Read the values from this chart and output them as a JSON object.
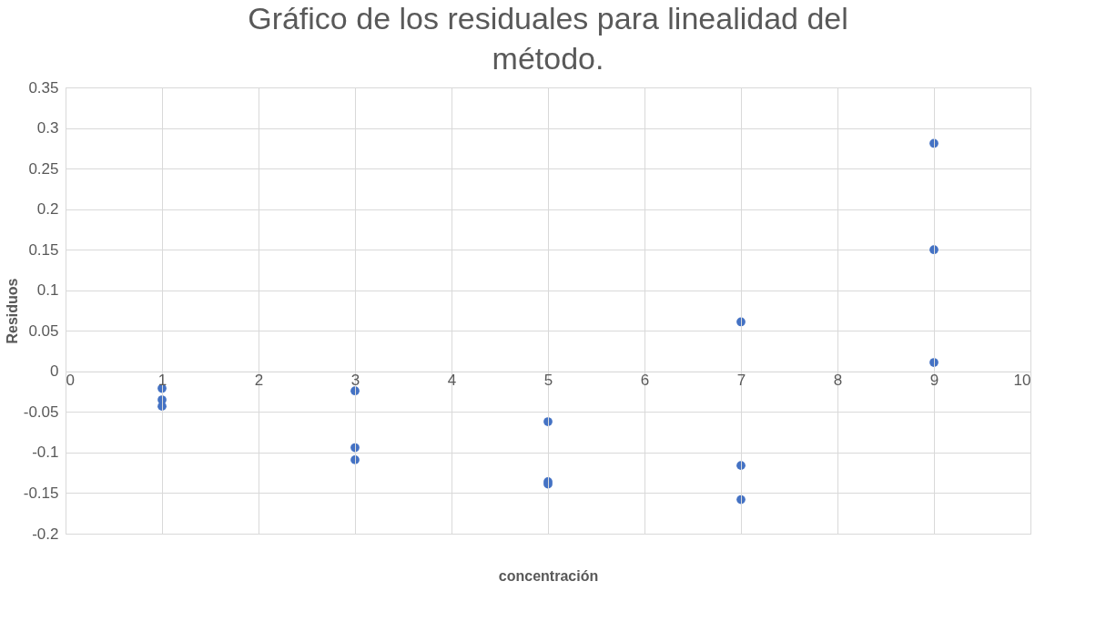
{
  "chart_data": {
    "type": "scatter",
    "title": "Gráfico de los residuales para linealidad del método.",
    "xlabel": "concentración",
    "ylabel": "Residuos",
    "x": [
      1,
      1,
      1,
      3,
      3,
      3,
      5,
      5,
      5,
      7,
      7,
      7,
      9,
      9,
      9
    ],
    "series": [
      {
        "color": "#4472c4",
        "values": [
          -0.021,
          -0.035,
          -0.043,
          -0.024,
          -0.094,
          -0.109,
          -0.062,
          -0.136,
          -0.139,
          0.061,
          -0.116,
          -0.158,
          0.281,
          0.15,
          0.011
        ]
      }
    ],
    "xlim": [
      0,
      10
    ],
    "xticks": [
      0,
      1,
      2,
      3,
      4,
      5,
      6,
      7,
      8,
      9,
      10
    ],
    "ylim": [
      -0.2,
      0.35
    ],
    "yticks": [
      -0.2,
      -0.15,
      -0.1,
      -0.05,
      0,
      0.05,
      0.1,
      0.15,
      0.2,
      0.25,
      0.3,
      0.35
    ],
    "grid": true,
    "marker": "circle"
  }
}
